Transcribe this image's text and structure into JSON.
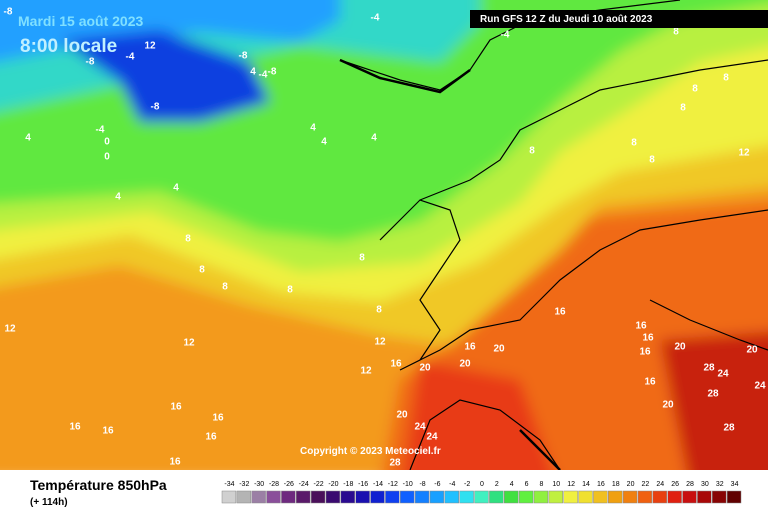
{
  "header": {
    "date": "Mardi 15 août 2023",
    "time": "8:00 locale",
    "run": "Run GFS 12 Z du Jeudi 10 août 2023"
  },
  "copyright": "Copyright © 2023 Meteociel.fr",
  "footer": {
    "title": "Température 850hPa",
    "lead": "(+ 114h)"
  },
  "legend": {
    "values": [
      -34,
      -32,
      -30,
      -28,
      -26,
      -24,
      -22,
      -20,
      -18,
      -16,
      -14,
      -12,
      -10,
      -8,
      -6,
      -4,
      -2,
      0,
      2,
      4,
      6,
      8,
      10,
      12,
      14,
      16,
      18,
      20,
      22,
      24,
      26,
      28,
      30,
      32,
      34
    ],
    "colors": [
      "#d0d0d0",
      "#b4b4b4",
      "#9b7fa5",
      "#8a4f9a",
      "#6e2a7f",
      "#5a1a6a",
      "#4a0f5a",
      "#3a0a70",
      "#2a0a90",
      "#1a10b0",
      "#1020d0",
      "#1040f0",
      "#1060ff",
      "#1480ff",
      "#18a0ff",
      "#20c0ff",
      "#30e0f0",
      "#40f0c0",
      "#30e080",
      "#40e040",
      "#60f040",
      "#90f040",
      "#c0f040",
      "#f0f040",
      "#f0e030",
      "#f0c020",
      "#f0a010",
      "#f08010",
      "#f06010",
      "#e84010",
      "#e02010",
      "#c81010",
      "#a80808",
      "#880404",
      "#600000"
    ]
  },
  "map_labels": [
    -8,
    -4,
    -4,
    8,
    -8,
    -4,
    12,
    -8,
    -8,
    4,
    -4,
    -8,
    -4,
    0,
    0,
    4,
    4,
    4,
    4,
    4,
    4,
    8,
    8,
    8,
    8,
    8,
    8,
    12,
    8,
    8,
    8,
    8,
    8,
    8,
    12,
    12,
    12,
    12,
    16,
    16,
    20,
    16,
    16,
    16,
    16,
    20,
    20,
    20,
    20,
    28,
    24,
    24,
    28,
    16,
    20,
    28,
    16,
    16,
    16,
    16,
    16,
    16,
    20,
    24,
    24,
    28
  ]
}
